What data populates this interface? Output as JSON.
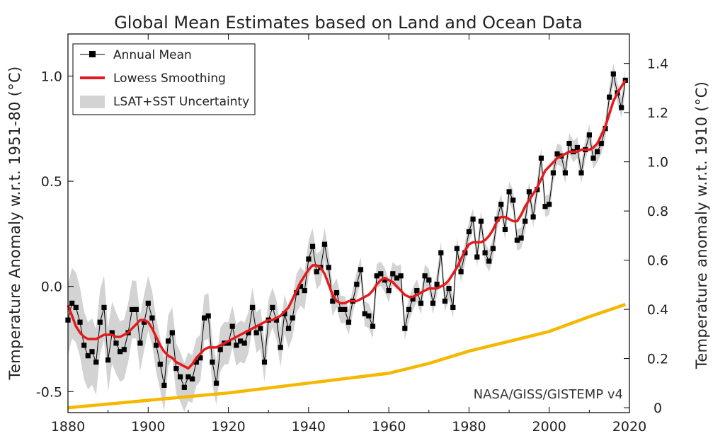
{
  "chart_data": {
    "type": "line",
    "title": "Global Mean Estimates based on Land and Ocean Data",
    "xlabel": "",
    "ylabel": "Temperature Anomaly w.r.t. 1951-80 (°C)",
    "y2label": "Temperature anomaly w.r.t. 1910 (°C)",
    "xlim": [
      1880,
      2020
    ],
    "ylim": [
      -0.6,
      1.2
    ],
    "y2lim": [
      -0.02,
      1.52
    ],
    "x_ticks": [
      1880,
      1900,
      1920,
      1940,
      1960,
      1980,
      2000,
      2020
    ],
    "y_ticks": [
      -0.5,
      0.0,
      0.5,
      1.0
    ],
    "y_tick_labels": [
      "-0.5",
      "0.0",
      "0.5",
      "1.0"
    ],
    "y2_ticks": [
      0,
      0.2,
      0.4,
      0.6,
      0.8,
      1.0,
      1.2,
      1.4
    ],
    "y2_tick_labels": [
      "0",
      "0.2",
      "0.4",
      "0.6",
      "0.8",
      "1.0",
      "1.2",
      "1.4"
    ],
    "grid": false,
    "legend_position": "top-left",
    "credit": "NASA/GISS/GISTEMP v4",
    "colors": {
      "annual": "#000000",
      "smooth": "#e41a1c",
      "band": "#d3d3d3",
      "secondary": "#f5b800"
    },
    "series": [
      {
        "name": "Annual Mean",
        "role": "annual",
        "x_start": 1880,
        "values": [
          -0.16,
          -0.08,
          -0.1,
          -0.17,
          -0.28,
          -0.33,
          -0.31,
          -0.36,
          -0.17,
          -0.1,
          -0.35,
          -0.22,
          -0.27,
          -0.31,
          -0.3,
          -0.22,
          -0.11,
          -0.11,
          -0.27,
          -0.17,
          -0.08,
          -0.15,
          -0.28,
          -0.37,
          -0.47,
          -0.26,
          -0.22,
          -0.39,
          -0.43,
          -0.48,
          -0.43,
          -0.44,
          -0.36,
          -0.34,
          -0.15,
          -0.14,
          -0.36,
          -0.46,
          -0.3,
          -0.27,
          -0.27,
          -0.19,
          -0.28,
          -0.26,
          -0.27,
          -0.22,
          -0.1,
          -0.22,
          -0.2,
          -0.36,
          -0.16,
          -0.1,
          -0.16,
          -0.29,
          -0.13,
          -0.2,
          -0.15,
          -0.03,
          0.0,
          -0.02,
          0.13,
          0.19,
          0.07,
          0.09,
          0.2,
          0.09,
          -0.07,
          -0.03,
          -0.11,
          -0.11,
          -0.17,
          -0.07,
          0.01,
          0.08,
          -0.13,
          -0.14,
          -0.19,
          0.05,
          0.06,
          0.03,
          -0.02,
          0.06,
          0.04,
          0.05,
          -0.2,
          -0.11,
          -0.06,
          -0.02,
          -0.08,
          0.05,
          0.03,
          -0.08,
          0.01,
          0.16,
          -0.07,
          -0.01,
          -0.1,
          0.18,
          0.07,
          0.16,
          0.26,
          0.32,
          0.14,
          0.31,
          0.16,
          0.12,
          0.18,
          0.32,
          0.39,
          0.27,
          0.45,
          0.41,
          0.22,
          0.23,
          0.31,
          0.45,
          0.33,
          0.46,
          0.61,
          0.38,
          0.39,
          0.54,
          0.63,
          0.62,
          0.54,
          0.68,
          0.64,
          0.66,
          0.54,
          0.65,
          0.72,
          0.61,
          0.64,
          0.68,
          0.75,
          0.9,
          1.01,
          0.92,
          0.85,
          0.98
        ]
      },
      {
        "name": "Lowess Smoothing",
        "role": "smooth",
        "x_start": 1880,
        "values": [
          -0.09,
          -0.14,
          -0.19,
          -0.22,
          -0.24,
          -0.25,
          -0.25,
          -0.25,
          -0.24,
          -0.23,
          -0.23,
          -0.23,
          -0.24,
          -0.24,
          -0.23,
          -0.22,
          -0.2,
          -0.18,
          -0.16,
          -0.16,
          -0.17,
          -0.2,
          -0.24,
          -0.28,
          -0.31,
          -0.33,
          -0.34,
          -0.36,
          -0.37,
          -0.38,
          -0.39,
          -0.37,
          -0.34,
          -0.32,
          -0.3,
          -0.29,
          -0.29,
          -0.29,
          -0.28,
          -0.27,
          -0.26,
          -0.25,
          -0.24,
          -0.23,
          -0.22,
          -0.21,
          -0.2,
          -0.19,
          -0.18,
          -0.17,
          -0.16,
          -0.16,
          -0.15,
          -0.14,
          -0.12,
          -0.1,
          -0.06,
          -0.02,
          0.02,
          0.05,
          0.08,
          0.1,
          0.1,
          0.09,
          0.06,
          0.01,
          -0.04,
          -0.07,
          -0.08,
          -0.08,
          -0.07,
          -0.07,
          -0.07,
          -0.06,
          -0.05,
          -0.04,
          -0.02,
          0.01,
          0.03,
          0.04,
          0.03,
          0.02,
          0.0,
          -0.02,
          -0.04,
          -0.05,
          -0.05,
          -0.04,
          -0.03,
          -0.02,
          -0.01,
          -0.01,
          -0.01,
          0.0,
          0.01,
          0.03,
          0.06,
          0.09,
          0.13,
          0.17,
          0.2,
          0.21,
          0.21,
          0.21,
          0.22,
          0.24,
          0.27,
          0.31,
          0.33,
          0.33,
          0.32,
          0.31,
          0.31,
          0.34,
          0.38,
          0.41,
          0.44,
          0.47,
          0.51,
          0.55,
          0.57,
          0.59,
          0.61,
          0.62,
          0.63,
          0.64,
          0.64,
          0.64,
          0.65,
          0.65,
          0.65,
          0.66,
          0.68,
          0.72,
          0.76,
          0.82,
          0.88,
          0.92,
          0.95,
          0.98
        ]
      },
      {
        "name": "LSAT+SST Uncertainty",
        "role": "band",
        "x_start": 1880,
        "halfwidth_points": [
          [
            1880,
            0.17
          ],
          [
            1900,
            0.13
          ],
          [
            1920,
            0.1
          ],
          [
            1940,
            0.09
          ],
          [
            1950,
            0.06
          ],
          [
            1980,
            0.05
          ],
          [
            2000,
            0.05
          ],
          [
            2019,
            0.05
          ]
        ]
      },
      {
        "role": "secondary",
        "axis": "right",
        "x": [
          1880,
          1900,
          1920,
          1940,
          1960,
          1970,
          1980,
          1990,
          2000,
          2010,
          2019
        ],
        "values": [
          0.0,
          0.03,
          0.06,
          0.1,
          0.14,
          0.18,
          0.23,
          0.27,
          0.31,
          0.37,
          0.42
        ]
      }
    ]
  }
}
